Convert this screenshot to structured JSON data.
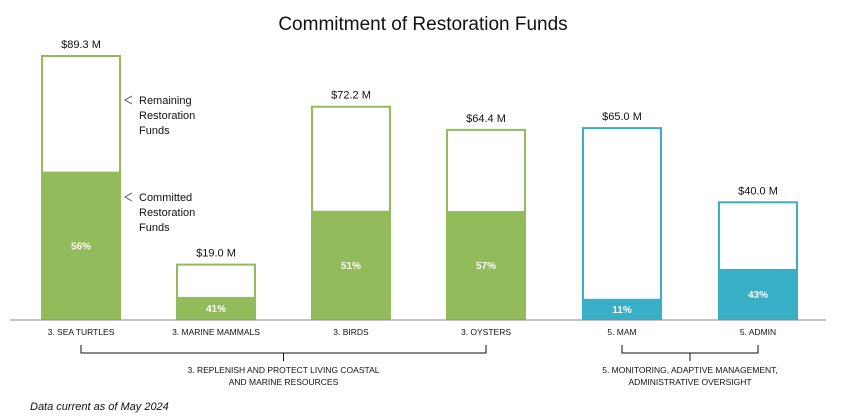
{
  "chart_data": {
    "type": "bar",
    "stacked": true,
    "title": "Commitment of Restoration Funds",
    "categories": [
      "3. SEA TURTLES",
      "3. MARINE MAMMALS",
      "3. BIRDS",
      "3. OYSTERS",
      "5. MAM",
      "5. ADMIN"
    ],
    "totals": [
      89.3,
      19.0,
      72.2,
      64.4,
      65.0,
      40.0
    ],
    "total_labels": [
      "$89.3 M",
      "$19.0 M",
      "$72.2 M",
      "$64.4 M",
      "$65.0 M",
      "$40.0 M"
    ],
    "committed_percent": [
      56,
      41,
      51,
      57,
      11,
      43
    ],
    "committed_labels": [
      "56%",
      "41%",
      "51%",
      "57%",
      "11%",
      "43%"
    ],
    "series": [
      {
        "name": "Committed Restoration Funds"
      },
      {
        "name": "Remaining Restoration Funds"
      }
    ],
    "groups": [
      {
        "label_lines": [
          "3. REPLENISH AND PROTECT LIVING COASTAL",
          "AND MARINE RESOURCES"
        ],
        "from": 0,
        "to": 3,
        "color": "#92bb5c"
      },
      {
        "label_lines": [
          "5. MONITORING, ADAPTIVE MANAGEMENT,",
          "ADMINISTRATIVE OVERSIGHT"
        ],
        "from": 4,
        "to": 5,
        "color": "#38afc6"
      }
    ],
    "annotations": [
      {
        "target": "remaining",
        "lines": [
          "Remaining",
          "Restoration",
          "Funds"
        ]
      },
      {
        "target": "committed",
        "lines": [
          "Committed",
          "Restoration",
          "Funds"
        ]
      }
    ],
    "ylim": [
      0,
      89.3
    ],
    "grid": false,
    "legend": "annotations on first bar"
  },
  "footnote": "Data current as of May 2024",
  "colors": {
    "green": "#92bb5c",
    "teal": "#38afc6",
    "axis": "#888888",
    "text": "#111111"
  }
}
